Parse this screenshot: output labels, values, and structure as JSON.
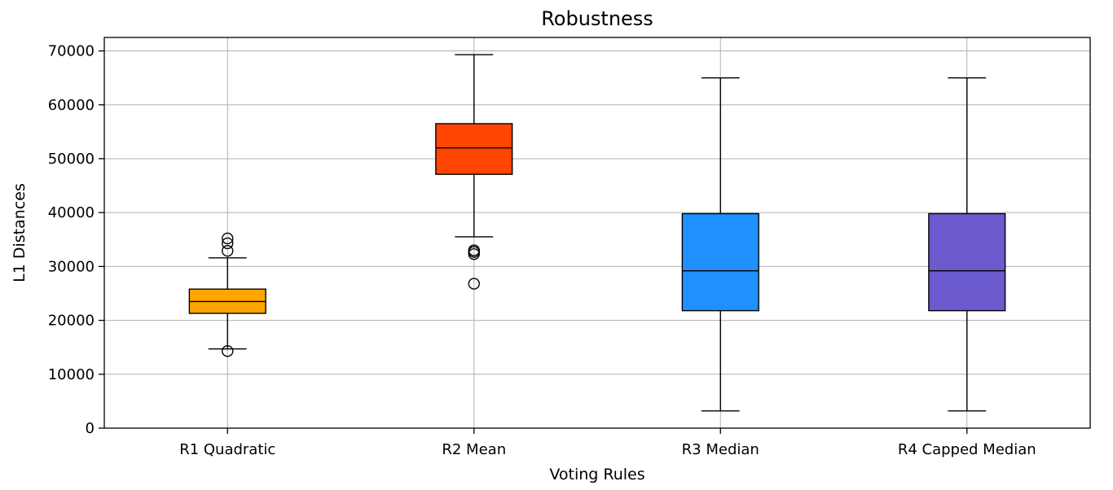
{
  "chart_data": {
    "type": "box",
    "title": "Robustness",
    "xlabel": "Voting Rules",
    "ylabel": "L1 Distances",
    "ylim": [
      0,
      72500
    ],
    "yticks": [
      0,
      10000,
      20000,
      30000,
      40000,
      50000,
      60000,
      70000
    ],
    "grid": true,
    "categories": [
      "R1 Quadratic",
      "R2 Mean",
      "R3 Median",
      "R4 Capped Median"
    ],
    "boxes": [
      {
        "name": "R1 Quadratic",
        "whislo": 14700,
        "q1": 21300,
        "med": 23500,
        "q3": 25800,
        "whishi": 31600,
        "fliers": [
          14300,
          32900,
          34300,
          35200
        ],
        "color": "#FFA500"
      },
      {
        "name": "R2 Mean",
        "whislo": 35500,
        "q1": 47100,
        "med": 52000,
        "q3": 56500,
        "whishi": 69300,
        "fliers": [
          26800,
          32300,
          32700,
          33000
        ],
        "color": "#FF4500"
      },
      {
        "name": "R3 Median",
        "whislo": 3200,
        "q1": 21800,
        "med": 29200,
        "q3": 39800,
        "whishi": 65000,
        "fliers": [],
        "color": "#1E90FF"
      },
      {
        "name": "R4 Capped Median",
        "whislo": 3200,
        "q1": 21800,
        "med": 29200,
        "q3": 39800,
        "whishi": 65000,
        "fliers": [],
        "color": "#6A5ACD"
      }
    ]
  }
}
